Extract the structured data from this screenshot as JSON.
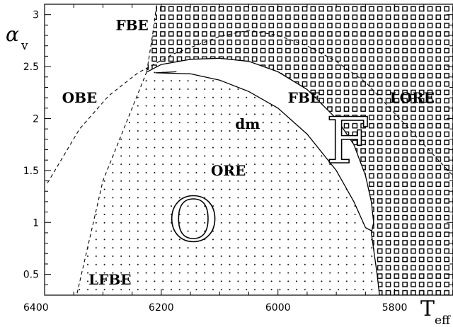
{
  "chart_data": {
    "type": "line",
    "xlabel": "T",
    "xlabel_sub": "eff",
    "ylabel": "α",
    "ylabel_sub": "v",
    "xlim": [
      6400,
      5700
    ],
    "ylim": [
      0.3,
      3.1
    ],
    "x_ticks": [
      6400,
      6200,
      6000,
      5800
    ],
    "y_ticks": [
      0.5,
      1,
      1.5,
      2,
      2.5,
      3
    ],
    "y_tick_labels": [
      "0.5",
      "1",
      "1.5",
      "2",
      "2.5",
      "3"
    ],
    "grid": false,
    "series": [
      {
        "style": "solid",
        "points": [
          [
            6174,
            2.45
          ],
          [
            6210,
            2.44
          ],
          [
            6150,
            2.43
          ],
          [
            6100,
            2.37
          ],
          [
            6050,
            2.26
          ],
          [
            6000,
            2.1
          ],
          [
            5950,
            1.85
          ],
          [
            5900,
            1.5
          ],
          [
            5870,
            1.2
          ],
          [
            5850,
            0.95
          ],
          [
            5840,
            0.92
          ]
        ]
      },
      {
        "style": "solid",
        "points": [
          [
            6224,
            2.45
          ],
          [
            6200,
            2.52
          ],
          [
            6150,
            2.57
          ],
          [
            6100,
            2.58
          ],
          [
            6050,
            2.55
          ],
          [
            6000,
            2.45
          ],
          [
            5950,
            2.28
          ],
          [
            5900,
            2.0
          ],
          [
            5870,
            1.75
          ],
          [
            5850,
            1.45
          ],
          [
            5840,
            1.2
          ],
          [
            5836,
            1.0
          ],
          [
            5840,
            0.9
          ]
        ]
      },
      {
        "style": "solid",
        "points": [
          [
            5840,
            0.9
          ],
          [
            5835,
            0.7
          ],
          [
            5830,
            0.5
          ],
          [
            5826,
            0.3
          ]
        ]
      },
      {
        "style": "dashed",
        "points": [
          [
            6395,
            1.38
          ],
          [
            6340,
            1.9
          ],
          [
            6290,
            2.22
          ],
          [
            6240,
            2.44
          ],
          [
            6180,
            2.62
          ],
          [
            6100,
            2.79
          ],
          [
            6050,
            2.85
          ],
          [
            6000,
            2.8
          ],
          [
            5950,
            2.7
          ],
          [
            5900,
            2.55
          ],
          [
            5850,
            2.35
          ],
          [
            5800,
            2.05
          ],
          [
            5750,
            1.75
          ],
          [
            5700,
            1.45
          ]
        ]
      },
      {
        "style": "dashed",
        "points": [
          [
            6225,
            2.45
          ],
          [
            6215,
            2.8
          ],
          [
            6208,
            3.1
          ]
        ]
      },
      {
        "style": "dashed",
        "points": [
          [
            6225,
            2.45
          ],
          [
            6300,
            1.4
          ],
          [
            6345,
            0.3
          ]
        ]
      }
    ],
    "annotations": [
      {
        "text": "FBE",
        "x": 6250,
        "y": 2.9
      },
      {
        "text": "OBE",
        "x": 6340,
        "y": 2.2
      },
      {
        "text": "FBE",
        "x": 5955,
        "y": 2.2
      },
      {
        "text": "LORE",
        "x": 5770,
        "y": 2.2
      },
      {
        "text": "dm",
        "x": 6052,
        "y": 1.95
      },
      {
        "text": "ORE",
        "x": 6085,
        "y": 1.5
      },
      {
        "text": "LFBE",
        "x": 6288,
        "y": 0.45
      }
    ],
    "big_labels": [
      {
        "text": "O",
        "x": 6145,
        "y": 1.0
      },
      {
        "text": "F",
        "x": 5880,
        "y": 1.75
      }
    ],
    "regions": [
      {
        "label": "O",
        "fill": "dots"
      },
      {
        "label": "F",
        "fill": "squares"
      }
    ]
  }
}
